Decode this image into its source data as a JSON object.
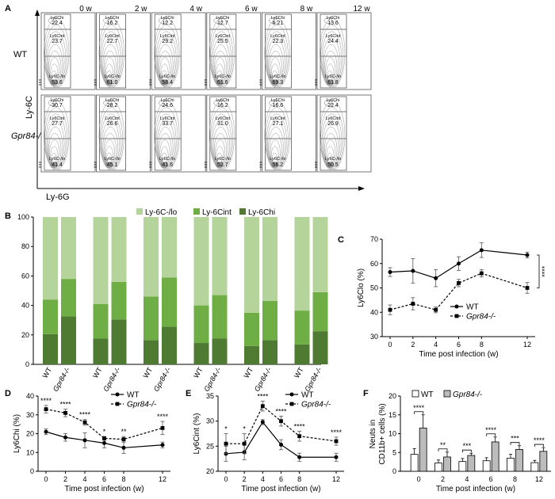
{
  "panel_labels": {
    "a": "A",
    "b": "B",
    "c": "C",
    "d": "D",
    "e": "E",
    "f": "F"
  },
  "panel_a": {
    "timepoints": [
      "0 w",
      "2 w",
      "4 w",
      "6 w",
      "8 w",
      "12 w"
    ],
    "row_labels": [
      "WT",
      "Gpr84-/-"
    ],
    "y_axis": "Ly-6C",
    "x_axis": "Ly-6G",
    "gate_names": [
      "Ly6Chi",
      "Ly6Cint",
      "Ly6C-/lo"
    ],
    "values": {
      "wt": [
        [
          "22.4",
          "23.7",
          "53.6"
        ],
        [
          "16.2",
          "22.7",
          "61.0"
        ],
        [
          "12.2",
          "29.2",
          "58.4"
        ],
        [
          "12.7",
          "25.5",
          "61.6"
        ],
        [
          "6.21",
          "22.3",
          "69.3"
        ],
        [
          "13.6",
          "24.4",
          "61.8"
        ]
      ],
      "ko": [
        [
          "30.7",
          "27.7",
          "41.4"
        ],
        [
          "28.2",
          "26.6",
          "45.1"
        ],
        [
          "24.6",
          "33.7",
          "41.6"
        ],
        [
          "16.2",
          "31.0",
          "52.7"
        ],
        [
          "16.6",
          "27.1",
          "56.2"
        ],
        [
          "22.4",
          "26.9",
          "50.5"
        ]
      ]
    }
  },
  "colors": {
    "lo": "#b5d49b",
    "int": "#6fad45",
    "hi": "#4f7a32",
    "bar_wt": "#ffffff",
    "bar_ko": "#bcbcbc"
  },
  "chart_data": [
    {
      "id": "B",
      "type": "bar",
      "stacked": true,
      "categories": [
        "WT",
        "Gpr84-/-",
        "WT",
        "Gpr84-/-",
        "WT",
        "Gpr84-/-",
        "WT",
        "Gpr84-/-",
        "WT",
        "Gpr84-/-",
        "WT",
        "Gpr84-/-"
      ],
      "series": [
        {
          "name": "Ly-6Chi",
          "values": [
            20.5,
            32.5,
            17.5,
            30.5,
            16.5,
            25.5,
            14.5,
            17.5,
            12.5,
            16.5,
            13.5,
            22.5
          ]
        },
        {
          "name": "Ly-6Cint",
          "values": [
            23.5,
            25.5,
            23.5,
            25.5,
            29.5,
            33.5,
            25.5,
            29.5,
            22.5,
            26.5,
            23.0,
            26.5
          ]
        },
        {
          "name": "Ly-6C-/lo",
          "values": [
            56.0,
            42.0,
            59.0,
            44.0,
            54.0,
            41.0,
            60.0,
            53.0,
            65.0,
            57.0,
            63.5,
            51.0
          ]
        }
      ],
      "yticks": [
        "0",
        "20",
        "40",
        "60",
        "80",
        "100"
      ],
      "ylim": [
        0,
        100
      ],
      "legend": [
        "Ly-6C-/lo",
        "Ly-6Cint",
        "Ly-6Chi"
      ]
    },
    {
      "id": "C",
      "type": "line",
      "x": [
        0,
        2,
        4,
        6,
        8,
        12
      ],
      "xticks": [
        "0",
        "2",
        "4",
        "6",
        "8",
        "12"
      ],
      "yticks": [
        "30",
        "40",
        "50",
        "60",
        "70"
      ],
      "ylim": [
        30,
        70
      ],
      "ylabel": "Ly6Clo (%)",
      "xlabel": "Time post infection (w)",
      "series": [
        {
          "name": "WT",
          "values": [
            56.5,
            57,
            54,
            60,
            65.5,
            63.5
          ],
          "err": [
            1.8,
            5,
            3.5,
            2.8,
            3,
            1.2
          ]
        },
        {
          "name": "Gpr84-/-",
          "values": [
            41,
            43.5,
            41,
            52,
            56,
            50
          ],
          "err": [
            2,
            2.5,
            1.2,
            1.5,
            1.5,
            2.2
          ]
        }
      ],
      "annotation": "****"
    },
    {
      "id": "D",
      "type": "line",
      "x": [
        0,
        2,
        4,
        6,
        8,
        12
      ],
      "xticks": [
        "0",
        "2",
        "4",
        "6",
        "8",
        "12"
      ],
      "yticks": [
        "0",
        "10",
        "20",
        "30",
        "40"
      ],
      "ylim": [
        0,
        40
      ],
      "ylabel": "Ly6Chi (%)",
      "xlabel": "Time post infection (w)",
      "series": [
        {
          "name": "WT",
          "values": [
            21,
            18,
            16.5,
            15,
            12.5,
            14
          ],
          "err": [
            1.5,
            2,
            4,
            2.5,
            3,
            1.5
          ]
        },
        {
          "name": "Gpr84-/-",
          "values": [
            33,
            31,
            26,
            17.5,
            17,
            23
          ],
          "err": [
            2,
            2,
            1.5,
            1,
            1.5,
            3.5
          ]
        }
      ],
      "sig": [
        "****",
        "****",
        "****",
        "*",
        "**",
        "****"
      ]
    },
    {
      "id": "E",
      "type": "line",
      "x": [
        0,
        2,
        4,
        6,
        8,
        12
      ],
      "xticks": [
        "0",
        "2",
        "4",
        "6",
        "8",
        "12"
      ],
      "yticks": [
        "20",
        "25",
        "30",
        "35"
      ],
      "ylim": [
        20,
        35
      ],
      "ylabel": "Ly6Cint (%)",
      "xlabel": "Time post infection (w)",
      "series": [
        {
          "name": "WT",
          "values": [
            23.5,
            23.8,
            29.8,
            25.3,
            22.8,
            22.8
          ],
          "err": [
            1.5,
            1.5,
            0.5,
            1,
            0.8,
            0.8
          ]
        },
        {
          "name": "Gpr84-/-",
          "values": [
            25.5,
            25.5,
            33,
            30,
            27,
            26
          ],
          "err": [
            2,
            2,
            1,
            1,
            1,
            0.8
          ]
        }
      ],
      "sig": [
        "*",
        "*",
        "****",
        "****",
        "****",
        "****"
      ]
    },
    {
      "id": "F",
      "type": "bar",
      "categories": [
        "0",
        "2",
        "4",
        "6",
        "8",
        "12"
      ],
      "yticks": [
        "0",
        "5",
        "10",
        "15",
        "20"
      ],
      "ylim": [
        0,
        20
      ],
      "ylabel_lines": [
        "Neuts in",
        "CD11b+ cells (%)"
      ],
      "xlabel": "Time post infection (w)",
      "series": [
        {
          "name": "WT",
          "values": [
            4.5,
            2.2,
            2.6,
            2.8,
            3.5,
            2.3
          ],
          "err": [
            1.5,
            0.8,
            0.8,
            0.8,
            1,
            0.6
          ]
        },
        {
          "name": "Gpr84-/-",
          "values": [
            11.5,
            3.8,
            4.2,
            7.8,
            5.8,
            5.3
          ],
          "err": [
            3.5,
            1.3,
            0.6,
            1.3,
            1,
            1
          ]
        }
      ],
      "sig": [
        "****",
        "**",
        "***",
        "****",
        "***",
        "****"
      ]
    }
  ]
}
